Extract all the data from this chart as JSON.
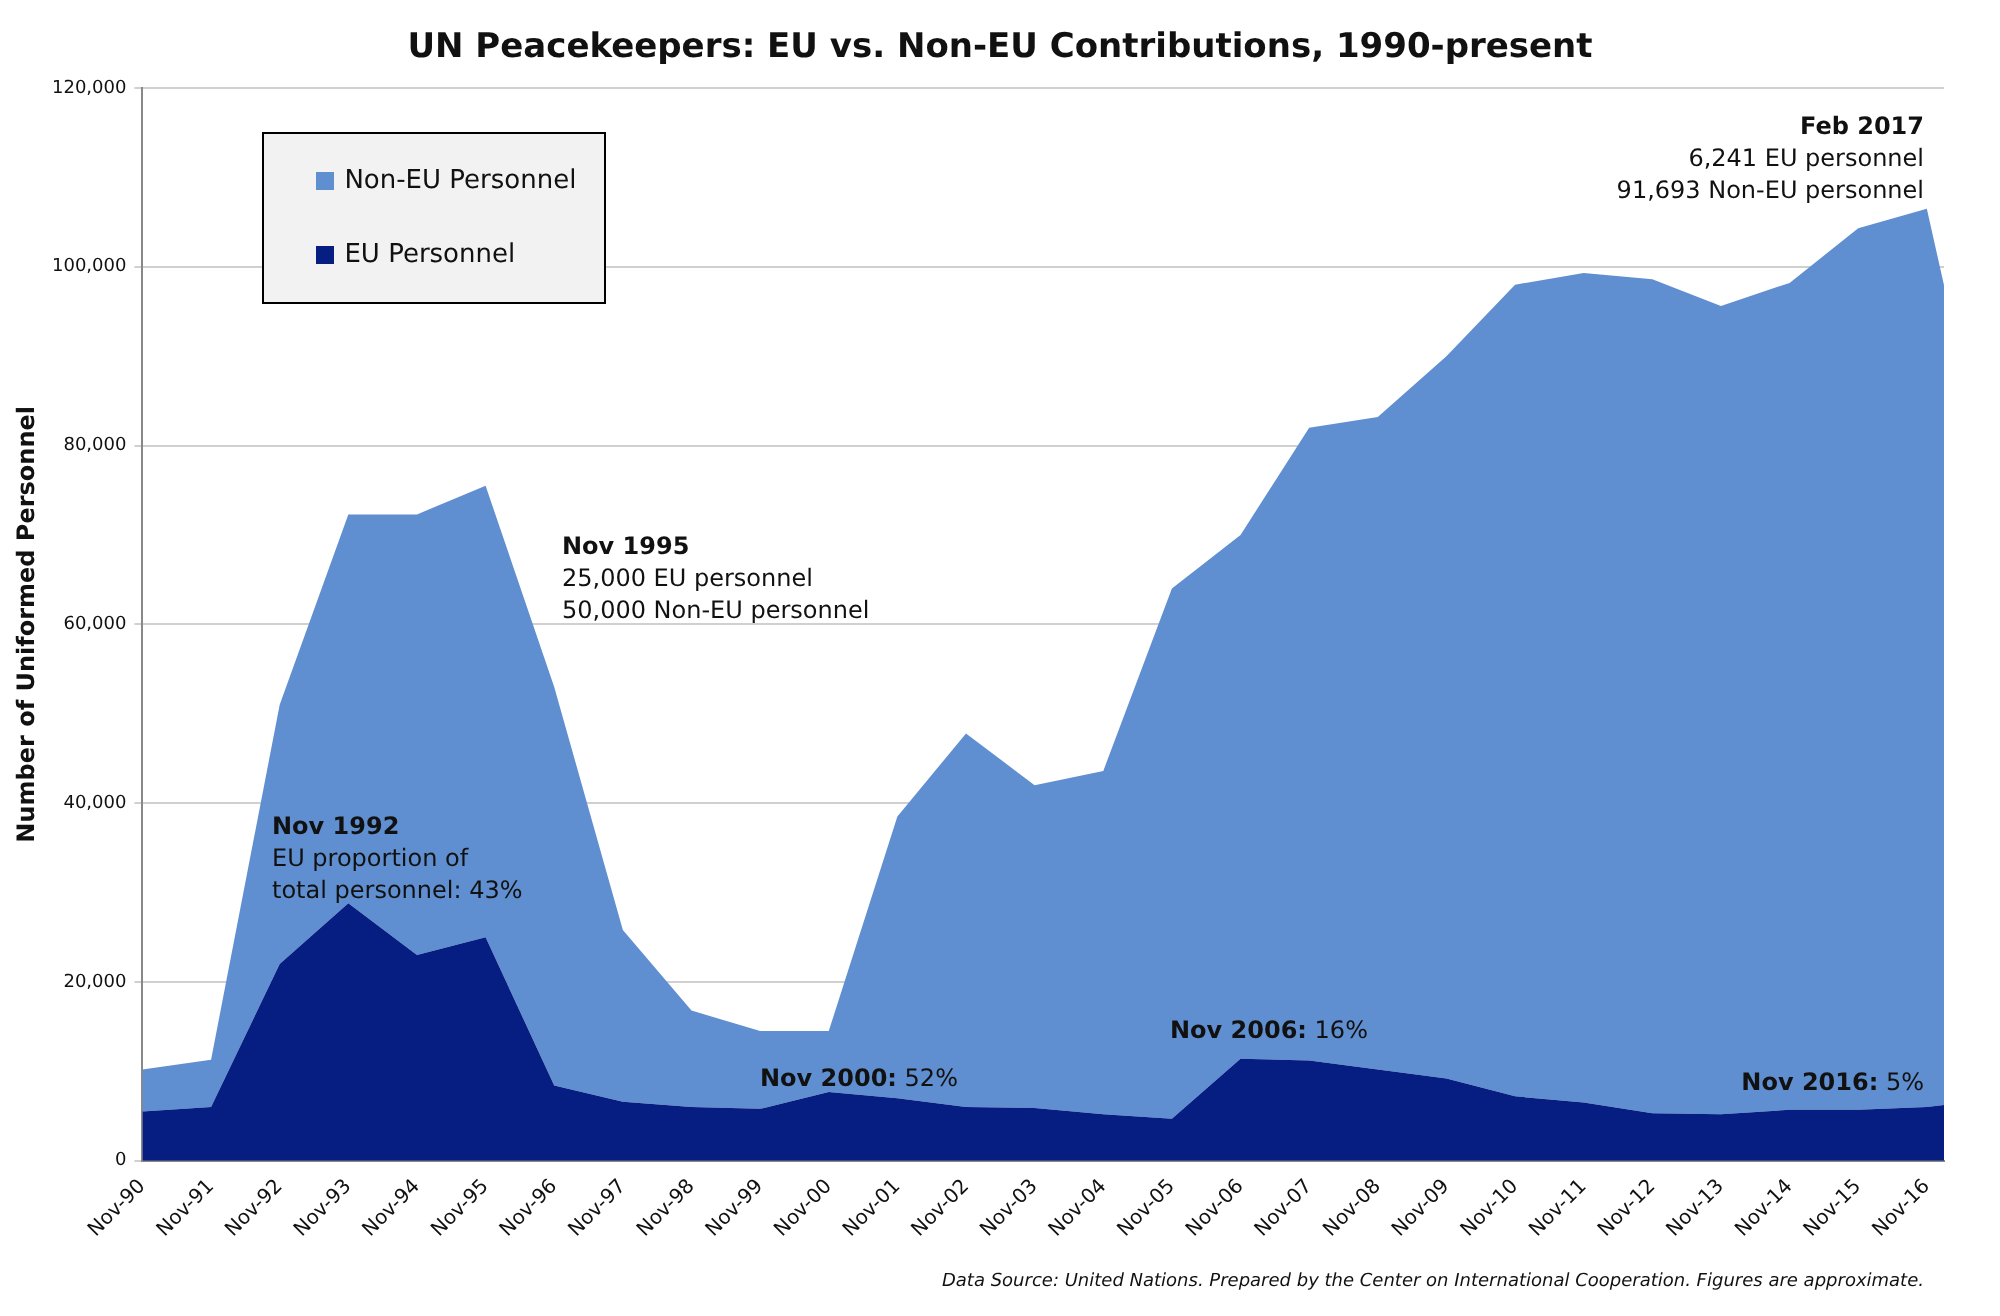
{
  "chart_data": {
    "type": "area",
    "title": "UN Peacekeepers: EU vs. Non-EU Contributions, 1990-present",
    "ylabel": "Number of Uniformed Personnel",
    "x": [
      "1990-11",
      "1991-11",
      "1992-11",
      "1993-11",
      "1994-11",
      "1995-11",
      "1996-11",
      "1997-11",
      "1998-11",
      "1999-11",
      "2000-11",
      "2001-11",
      "2002-11",
      "2003-11",
      "2004-11",
      "2005-11",
      "2006-11",
      "2007-11",
      "2008-11",
      "2009-11",
      "2010-11",
      "2011-11",
      "2012-11",
      "2013-11",
      "2014-11",
      "2015-11",
      "2016-11",
      "2017-02"
    ],
    "stacked": true,
    "series": [
      {
        "name": "EU Personnel",
        "color": "#061d82",
        "values": [
          5500,
          6000,
          22000,
          28800,
          23000,
          25000,
          8400,
          6600,
          6000,
          5800,
          7700,
          7000,
          6000,
          5900,
          5200,
          4700,
          11400,
          11200,
          10200,
          9200,
          7200,
          6500,
          5300,
          5200,
          5700,
          5700,
          6000,
          6241
        ]
      },
      {
        "name": "Non-EU Personnel",
        "color": "#5f8fd0",
        "values": [
          4700,
          5300,
          29000,
          43500,
          49300,
          50500,
          44600,
          19200,
          10800,
          8700,
          6800,
          31500,
          41800,
          36100,
          38400,
          59300,
          58600,
          70800,
          73000,
          80800,
          90800,
          92800,
          93300,
          90400,
          92500,
          98600,
          100500,
          91693
        ]
      }
    ],
    "xlim": [
      "1990-11",
      "2017-02"
    ],
    "xticks": [
      {
        "value": "1990-11",
        "label": "Nov-90"
      },
      {
        "value": "1991-11",
        "label": "Nov-91"
      },
      {
        "value": "1992-11",
        "label": "Nov-92"
      },
      {
        "value": "1993-11",
        "label": "Nov-93"
      },
      {
        "value": "1994-11",
        "label": "Nov-94"
      },
      {
        "value": "1995-11",
        "label": "Nov-95"
      },
      {
        "value": "1996-11",
        "label": "Nov-96"
      },
      {
        "value": "1997-11",
        "label": "Nov-97"
      },
      {
        "value": "1998-11",
        "label": "Nov-98"
      },
      {
        "value": "1999-11",
        "label": "Nov-99"
      },
      {
        "value": "2000-11",
        "label": "Nov-00"
      },
      {
        "value": "2001-11",
        "label": "Nov-01"
      },
      {
        "value": "2002-11",
        "label": "Nov-02"
      },
      {
        "value": "2003-11",
        "label": "Nov-03"
      },
      {
        "value": "2004-11",
        "label": "Nov-04"
      },
      {
        "value": "2005-11",
        "label": "Nov-05"
      },
      {
        "value": "2006-11",
        "label": "Nov-06"
      },
      {
        "value": "2007-11",
        "label": "Nov-07"
      },
      {
        "value": "2008-11",
        "label": "Nov-08"
      },
      {
        "value": "2009-11",
        "label": "Nov-09"
      },
      {
        "value": "2010-11",
        "label": "Nov-10"
      },
      {
        "value": "2011-11",
        "label": "Nov-11"
      },
      {
        "value": "2012-11",
        "label": "Nov-12"
      },
      {
        "value": "2013-11",
        "label": "Nov-13"
      },
      {
        "value": "2014-11",
        "label": "Nov-14"
      },
      {
        "value": "2015-11",
        "label": "Nov-15"
      },
      {
        "value": "2016-11",
        "label": "Nov-16"
      }
    ],
    "ylim": [
      0,
      120000
    ],
    "yticks": [
      0,
      {
        "value": 20000,
        "label": "20,000"
      },
      {
        "value": 40000,
        "label": "40,000"
      },
      {
        "value": 60000,
        "label": "60,000"
      },
      {
        "value": 80000,
        "label": "80,000"
      },
      {
        "value": 100000,
        "label": "100,000"
      },
      {
        "value": 120000,
        "label": "120,000"
      }
    ],
    "grid": "y",
    "legend": "top left",
    "marker": "none",
    "annotations": [
      "Nov 1992\nEU proportion of\ntotal personnel: 43%",
      "Nov 1995\n25,000 EU personnel\n50,000 Non-EU personnel",
      "Nov 2000: 52%",
      "Nov 2006: 16%",
      "Nov 2016: 5%",
      "Feb 2017\n6,241 EU personnel\n91,693 Non-EU personnel",
      "Data Source: United Nations. Prepared by the Center on International Cooperation. Figures are approximate."
    ]
  }
}
